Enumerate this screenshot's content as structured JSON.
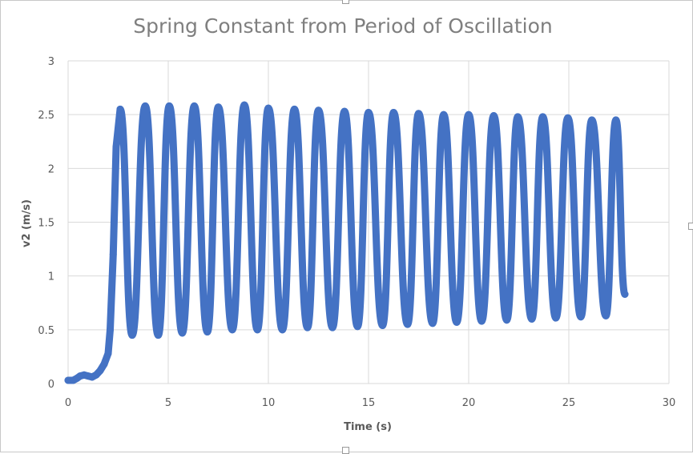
{
  "chart_data": {
    "type": "scatter",
    "title": "Spring Constant from Period of Oscillation",
    "xlabel": "Time (s)",
    "ylabel": "v2 (m/s)",
    "xlim": [
      0,
      30
    ],
    "ylim": [
      0,
      3
    ],
    "xticks": [
      0,
      5,
      10,
      15,
      20,
      25,
      30
    ],
    "yticks": [
      0,
      0.5,
      1,
      1.5,
      2,
      2.5,
      3
    ],
    "grid": true,
    "series_color": "#4472c4",
    "series": [
      {
        "name": "v2",
        "points": [
          [
            0.0,
            0.03
          ],
          [
            0.25,
            0.03
          ],
          [
            0.45,
            0.05
          ],
          [
            0.6,
            0.07
          ],
          [
            0.8,
            0.08
          ],
          [
            1.0,
            0.07
          ],
          [
            1.2,
            0.06
          ],
          [
            1.4,
            0.08
          ],
          [
            1.6,
            0.12
          ],
          [
            1.8,
            0.18
          ],
          [
            2.0,
            0.28
          ],
          [
            2.1,
            0.5
          ],
          [
            2.25,
            1.2
          ],
          [
            2.4,
            2.2
          ],
          [
            2.6,
            2.55
          ],
          [
            3.2,
            0.45
          ],
          [
            3.85,
            2.58
          ],
          [
            4.5,
            0.45
          ],
          [
            5.05,
            2.58
          ],
          [
            5.7,
            0.47
          ],
          [
            6.3,
            2.58
          ],
          [
            6.95,
            0.48
          ],
          [
            7.5,
            2.57
          ],
          [
            8.2,
            0.5
          ],
          [
            8.8,
            2.59
          ],
          [
            9.45,
            0.5
          ],
          [
            10.0,
            2.56
          ],
          [
            10.7,
            0.5
          ],
          [
            11.3,
            2.55
          ],
          [
            11.95,
            0.52
          ],
          [
            12.5,
            2.54
          ],
          [
            13.2,
            0.52
          ],
          [
            13.8,
            2.53
          ],
          [
            14.45,
            0.53
          ],
          [
            15.0,
            2.52
          ],
          [
            15.7,
            0.54
          ],
          [
            16.25,
            2.52
          ],
          [
            16.95,
            0.55
          ],
          [
            17.5,
            2.51
          ],
          [
            18.2,
            0.56
          ],
          [
            18.75,
            2.5
          ],
          [
            19.4,
            0.57
          ],
          [
            20.0,
            2.5
          ],
          [
            20.65,
            0.58
          ],
          [
            21.25,
            2.49
          ],
          [
            21.9,
            0.59
          ],
          [
            22.45,
            2.48
          ],
          [
            23.15,
            0.6
          ],
          [
            23.7,
            2.48
          ],
          [
            24.35,
            0.61
          ],
          [
            24.95,
            2.47
          ],
          [
            25.6,
            0.62
          ],
          [
            26.15,
            2.45
          ],
          [
            26.85,
            0.63
          ],
          [
            27.35,
            2.45
          ],
          [
            27.8,
            0.83
          ]
        ]
      }
    ]
  }
}
